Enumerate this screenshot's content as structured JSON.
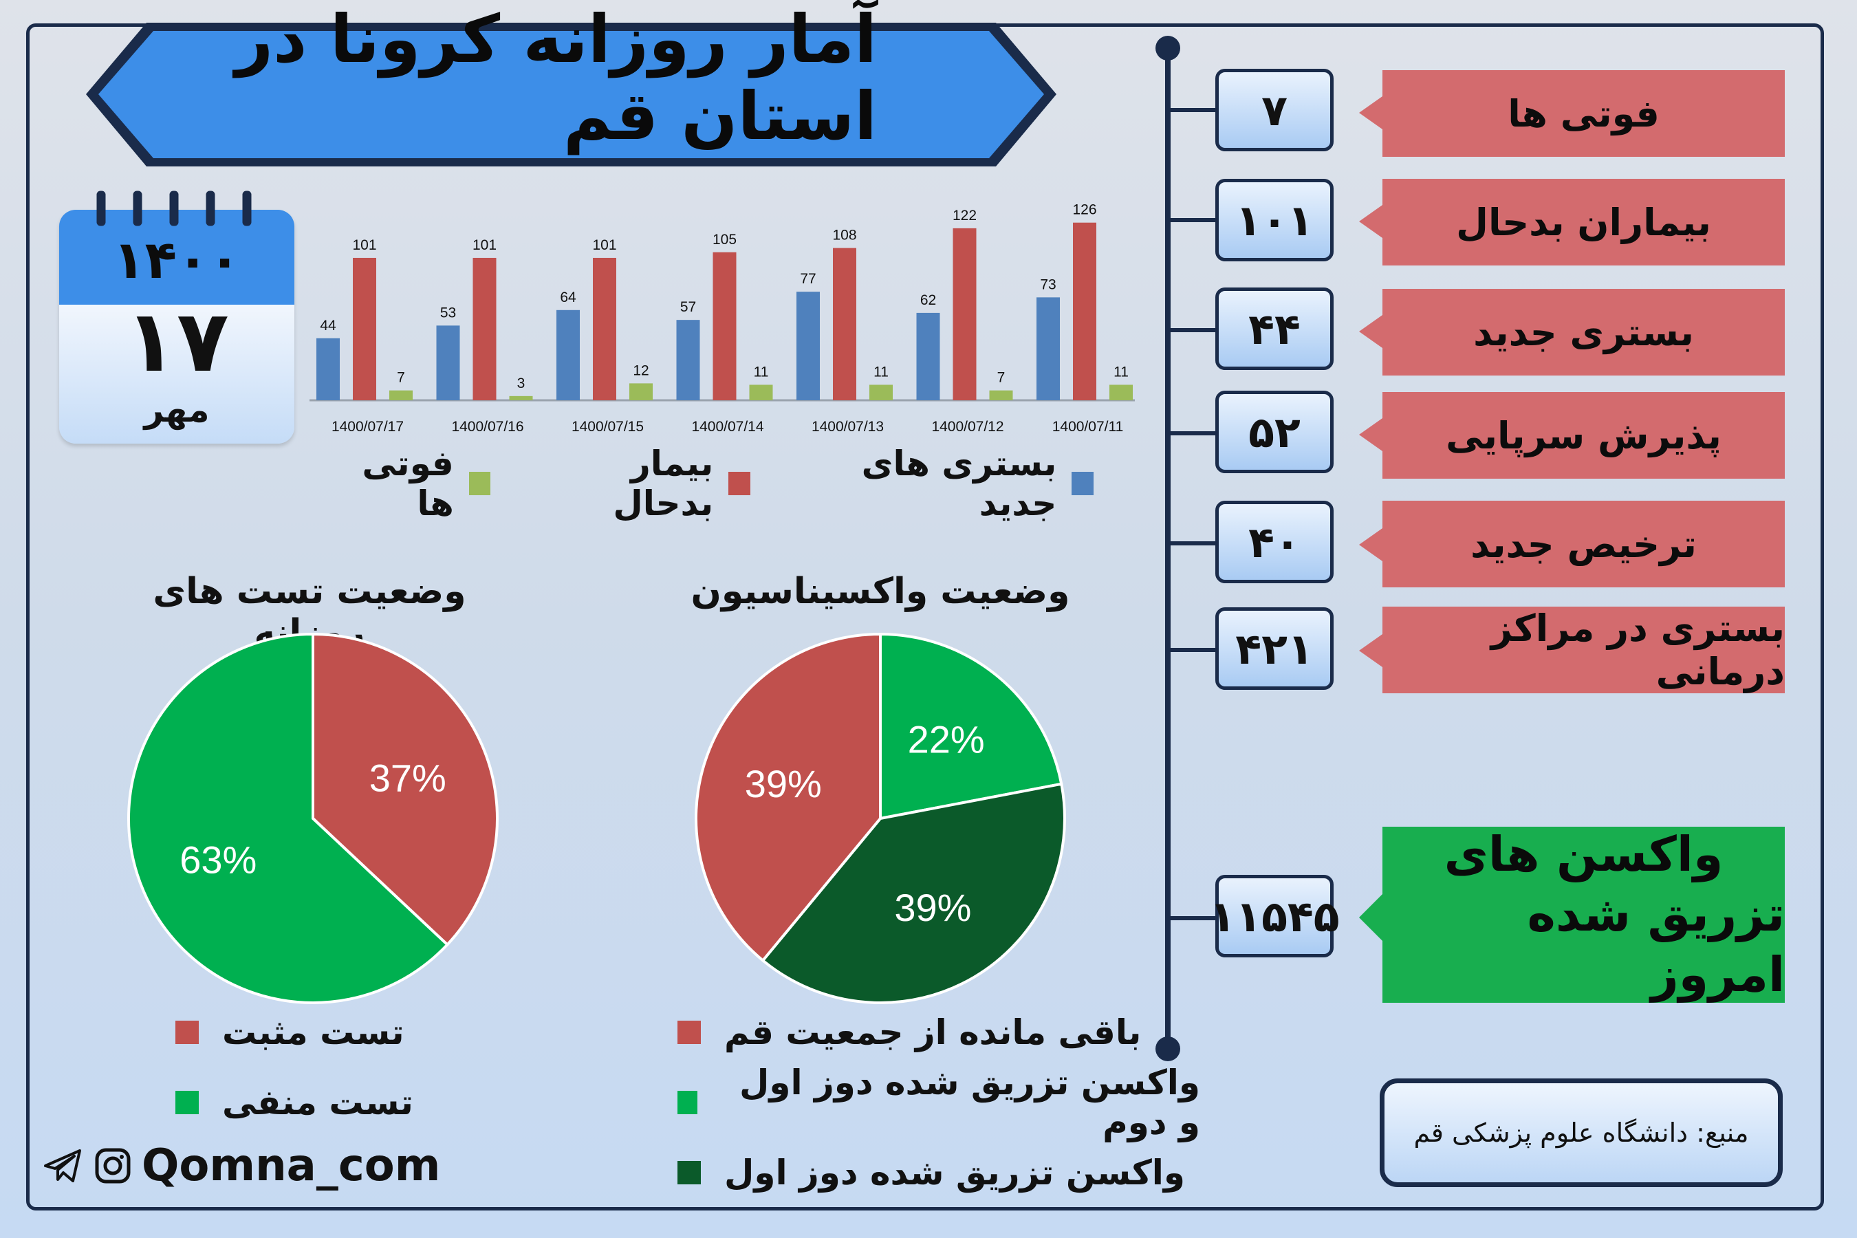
{
  "title": "آمار روزانه کرونا در استان قم",
  "calendar": {
    "year": "۱۴۰۰",
    "day": "۱۷",
    "month": "مهر"
  },
  "colors": {
    "blue": "#4f81bd",
    "red": "#c0504d",
    "green": "#9bbb59",
    "stat_label": "#d36b6e",
    "vaccine_green": "#18ae4f",
    "pie_green": "#00b050",
    "pie_dark_green": "#0b5a2a",
    "pie_red": "#c0504d"
  },
  "chart_data": [
    {
      "type": "bar",
      "categories": [
        "1400/07/17",
        "1400/07/16",
        "1400/07/15",
        "1400/07/14",
        "1400/07/13",
        "1400/07/12",
        "1400/07/11"
      ],
      "series": [
        {
          "name": "بستری های جدید",
          "color": "#4f81bd",
          "values": [
            44,
            53,
            64,
            57,
            77,
            62,
            73
          ]
        },
        {
          "name": "بیمار بدحال",
          "color": "#c0504d",
          "values": [
            101,
            101,
            101,
            105,
            108,
            122,
            126
          ]
        },
        {
          "name": "فوتی ها",
          "color": "#9bbb59",
          "values": [
            7,
            3,
            12,
            11,
            11,
            7,
            11
          ]
        }
      ],
      "ylim": [
        0,
        140
      ],
      "legend": "bottom"
    },
    {
      "type": "pie",
      "title": "وضعیت تست های روزانه",
      "slices": [
        {
          "name": "تست مثبت",
          "value": 37,
          "label": "37%",
          "color": "#c0504d"
        },
        {
          "name": "تست منفی",
          "value": 63,
          "label": "63%",
          "color": "#00b050"
        }
      ]
    },
    {
      "type": "pie",
      "title": "وضعیت واکسیناسیون",
      "slices": [
        {
          "name": "واکسن تزریق شده دوز اول و دوم",
          "value": 22,
          "label": "22%",
          "color": "#00b050"
        },
        {
          "name": "واکسن تزریق شده دوز اول",
          "value": 39,
          "label": "39%",
          "color": "#0b5a2a"
        },
        {
          "name": "باقی مانده از جمعیت قم",
          "value": 39,
          "label": "39%",
          "color": "#c0504d"
        }
      ]
    }
  ],
  "stats": [
    {
      "label": "فوتی ها",
      "value": "۷"
    },
    {
      "label": "بیماران بدحال",
      "value": "۱۰۱"
    },
    {
      "label": "بستری جدید",
      "value": "۴۴"
    },
    {
      "label": "پذیرش سرپایی",
      "value": "۵۲"
    },
    {
      "label": "ترخیص جدید",
      "value": "۴۰"
    },
    {
      "label": "بستری در مراکز درمانی",
      "value": "۴۲۱"
    }
  ],
  "vaccine": {
    "line1": "واکسن های",
    "line2": "تزریق شده امروز",
    "value": "۱۱۵۴۵"
  },
  "source": "منبع: دانشگاه علوم پزشکی قم",
  "brand": "Qomna_com",
  "icons": {
    "telegram": "telegram-icon",
    "instagram": "instagram-icon"
  }
}
